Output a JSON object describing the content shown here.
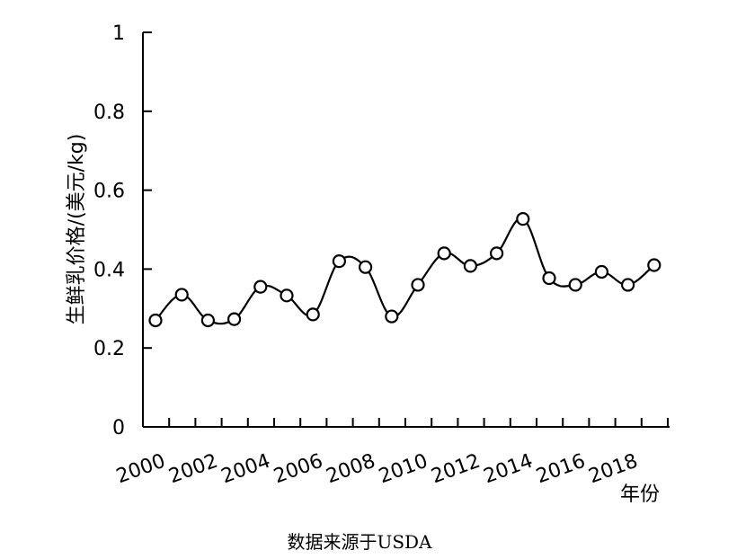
{
  "chart_data": {
    "type": "line",
    "title": "",
    "xlabel": "",
    "ylabel": "生鲜乳价格/(美元/kg)",
    "x_unit": "年份",
    "source_note": "数据来源于USDA",
    "x": [
      2000,
      2001,
      2002,
      2003,
      2004,
      2005,
      2006,
      2007,
      2008,
      2009,
      2010,
      2011,
      2012,
      2013,
      2014,
      2015,
      2016,
      2017,
      2018,
      2019
    ],
    "x_tick_labels": [
      "2000",
      "2002",
      "2004",
      "2006",
      "2008",
      "2010",
      "2012",
      "2014",
      "2016",
      "2018"
    ],
    "y_tick_labels": [
      "0",
      "0.2",
      "0.4",
      "0.6",
      "0.8",
      "1"
    ],
    "series": [
      {
        "values": [
          0.27,
          0.335,
          0.27,
          0.273,
          0.355,
          0.333,
          0.285,
          0.42,
          0.405,
          0.28,
          0.36,
          0.44,
          0.408,
          0.44,
          0.527,
          0.377,
          0.36,
          0.393,
          0.36,
          0.41
        ]
      }
    ],
    "ylim": [
      0,
      1
    ],
    "grid": false,
    "legend": "none",
    "line_color": "#000000",
    "marker_fill": "#ffffff"
  }
}
